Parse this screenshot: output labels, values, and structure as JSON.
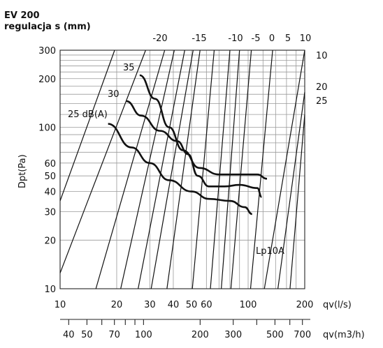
{
  "chart_data": {
    "type": "line",
    "title": "EV 200",
    "subtitle": "regulacja s (mm)",
    "ylabel": "Dpt(Pa)",
    "xlabel": "qv(l/s)",
    "x2label": "qv(m3/h)",
    "annotation": "Lp10A",
    "y_scale": "log",
    "x_scale": "log",
    "ylim": [
      10,
      300
    ],
    "xlim": [
      10,
      200
    ],
    "grid": true,
    "y_ticks": [
      {
        "label": "300",
        "value": 300
      },
      {
        "label": "200",
        "value": 200
      },
      {
        "label": "100",
        "value": 100
      },
      {
        "label": "60",
        "value": 60
      },
      {
        "label": "50",
        "value": 50
      },
      {
        "label": "40",
        "value": 40
      },
      {
        "label": "30",
        "value": 30
      },
      {
        "label": "20",
        "value": 20
      },
      {
        "label": "10",
        "value": 10
      }
    ],
    "x_ticks": [
      {
        "label": "10",
        "value": 10
      },
      {
        "label": "20",
        "value": 20
      },
      {
        "label": "30",
        "value": 30
      },
      {
        "label": "40",
        "value": 40
      },
      {
        "label": "50",
        "value": 50
      },
      {
        "label": "60",
        "value": 60
      },
      {
        "label": "100",
        "value": 100
      },
      {
        "label": "200",
        "value": 200
      }
    ],
    "x2_ticks": [
      {
        "label": "40",
        "value": 40
      },
      {
        "label": "50",
        "value": 50
      },
      {
        "label": "70",
        "value": 70
      },
      {
        "label": "100",
        "value": 100
      },
      {
        "label": "200",
        "value": 200
      },
      {
        "label": "300",
        "value": 300
      },
      {
        "label": "500",
        "value": 500
      },
      {
        "label": "700",
        "value": 700
      }
    ],
    "setting_lines": [
      {
        "label": "-20",
        "points": [
          [
            19.5,
            300
          ],
          [
            10,
            35
          ]
        ]
      },
      {
        "label": "-15",
        "points": [
          [
            28.5,
            300
          ],
          [
            10,
            12.5
          ]
        ]
      },
      {
        "label": "-10",
        "points": [
          [
            36,
            300
          ],
          [
            15.5,
            10
          ]
        ]
      },
      {
        "label": "-5",
        "points": [
          [
            40.5,
            300
          ],
          [
            21,
            10
          ]
        ]
      },
      {
        "label": "0",
        "points": [
          [
            46,
            300
          ],
          [
            26,
            10
          ]
        ]
      },
      {
        "label": "5",
        "points": [
          [
            51,
            300
          ],
          [
            30.5,
            10
          ]
        ]
      },
      {
        "label": "10",
        "points": [
          [
            55.5,
            300
          ],
          [
            37,
            10
          ]
        ]
      },
      {
        "label": "10",
        "points": [
          [
            66,
            300
          ],
          [
            50.5,
            10
          ]
        ]
      },
      {
        "label": "20",
        "points": [
          [
            80,
            300
          ],
          [
            63,
            10
          ]
        ]
      },
      {
        "label": "25",
        "points": [
          [
            90,
            300
          ],
          [
            72,
            10
          ]
        ]
      },
      {
        "label": "",
        "points": [
          [
            104,
            300
          ],
          [
            81,
            10
          ]
        ]
      },
      {
        "label": "",
        "points": [
          [
            135,
            300
          ],
          [
            103,
            10
          ]
        ]
      },
      {
        "label": "",
        "points": [
          [
            200,
            300
          ],
          [
            122,
            10
          ]
        ]
      },
      {
        "label": "",
        "points": [
          [
            200,
            165
          ],
          [
            144,
            10
          ]
        ]
      },
      {
        "label": "",
        "points": [
          [
            200,
            120
          ],
          [
            167,
            10
          ]
        ]
      }
    ],
    "series": [
      {
        "name": "35",
        "points": [
          [
            26.5,
            210
          ],
          [
            32,
            150
          ],
          [
            38,
            100
          ],
          [
            45,
            72
          ],
          [
            55,
            56
          ],
          [
            70,
            51
          ],
          [
            90,
            51
          ],
          [
            112,
            51
          ],
          [
            126,
            48
          ]
        ]
      },
      {
        "name": "30",
        "points": [
          [
            22.5,
            145
          ],
          [
            27,
            118
          ],
          [
            34,
            95
          ],
          [
            42,
            82
          ],
          [
            48,
            68
          ],
          [
            54,
            50
          ],
          [
            62,
            43
          ],
          [
            75,
            43
          ],
          [
            90,
            44
          ],
          [
            112,
            42
          ],
          [
            118,
            37
          ]
        ]
      },
      {
        "name": "25 dB(A)",
        "points": [
          [
            18,
            105
          ],
          [
            24,
            75
          ],
          [
            30,
            60
          ],
          [
            38,
            47
          ],
          [
            50,
            40
          ],
          [
            62,
            36
          ],
          [
            80,
            35
          ],
          [
            96,
            32
          ],
          [
            105,
            29
          ]
        ]
      }
    ]
  }
}
